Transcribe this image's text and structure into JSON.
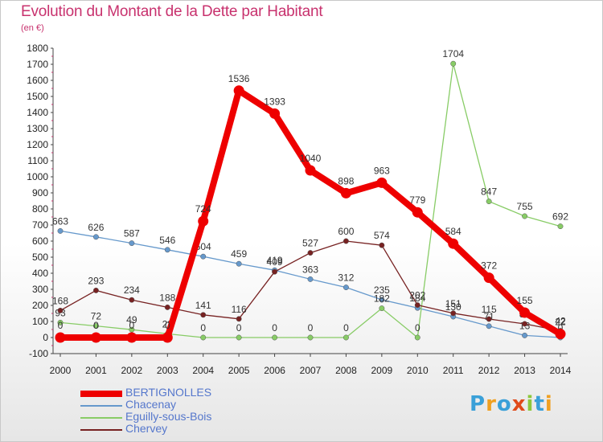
{
  "title": "Evolution du Montant de la Dette par Habitant",
  "subtitle": "(en €)",
  "logo": {
    "text": "Proxiti",
    "colors": [
      "#3aa0d8",
      "#f0a020",
      "#3aa0d8",
      "#e04a1a",
      "#8cc83c",
      "#3aa0d8",
      "#f0a020"
    ]
  },
  "chart_data": {
    "type": "line",
    "x": [
      "2000",
      "2001",
      "2002",
      "2003",
      "2004",
      "2005",
      "2006",
      "2007",
      "2008",
      "2009",
      "2010",
      "2011",
      "2012",
      "2013",
      "2014"
    ],
    "ylim": [
      -100,
      1800
    ],
    "yticks": [
      -100,
      0,
      100,
      200,
      300,
      400,
      500,
      600,
      700,
      800,
      900,
      1000,
      1100,
      1200,
      1300,
      1400,
      1500,
      1600,
      1700,
      1800
    ],
    "grid": false,
    "legend_position": "bottom-left",
    "series": [
      {
        "name": "BERTIGNOLLES",
        "color": "#ee0000",
        "values": [
          0,
          0,
          0,
          0,
          724,
          1536,
          1393,
          1040,
          898,
          963,
          779,
          584,
          372,
          155,
          22
        ],
        "labels": [
          "0",
          "0",
          "0",
          "0",
          "724",
          "1536",
          "1393",
          "1040",
          "898",
          "963",
          "779",
          "584",
          "372",
          "155",
          "22"
        ]
      },
      {
        "name": "Chacenay",
        "color": "#6699cc",
        "values": [
          663,
          626,
          587,
          546,
          504,
          459,
          419,
          363,
          312,
          235,
          184,
          130,
          71,
          13,
          0
        ],
        "labels": [
          "663",
          "626",
          "587",
          "546",
          "504",
          "459",
          "419",
          "363",
          "312",
          "235",
          "184",
          "130",
          "71",
          "13",
          "0"
        ]
      },
      {
        "name": "Eguilly-sous-Bois",
        "color": "#88cc66",
        "values": [
          93,
          72,
          49,
          23,
          0,
          0,
          0,
          0,
          0,
          182,
          0,
          1704,
          847,
          755,
          692
        ],
        "labels": [
          "93",
          "72",
          "49",
          "23",
          "0",
          "0",
          "0",
          "0",
          "0",
          "182",
          "0",
          "1704",
          "847",
          "755",
          "692"
        ]
      },
      {
        "name": "Chervey",
        "color": "#772222",
        "values": [
          168,
          293,
          234,
          188,
          141,
          116,
          409,
          527,
          600,
          574,
          202,
          151,
          115,
          85,
          42
        ],
        "labels": [
          "168",
          "293",
          "234",
          "188",
          "141",
          "116",
          "409",
          "527",
          "600",
          "574",
          "202",
          "151",
          "115",
          "85",
          "42"
        ]
      }
    ]
  }
}
